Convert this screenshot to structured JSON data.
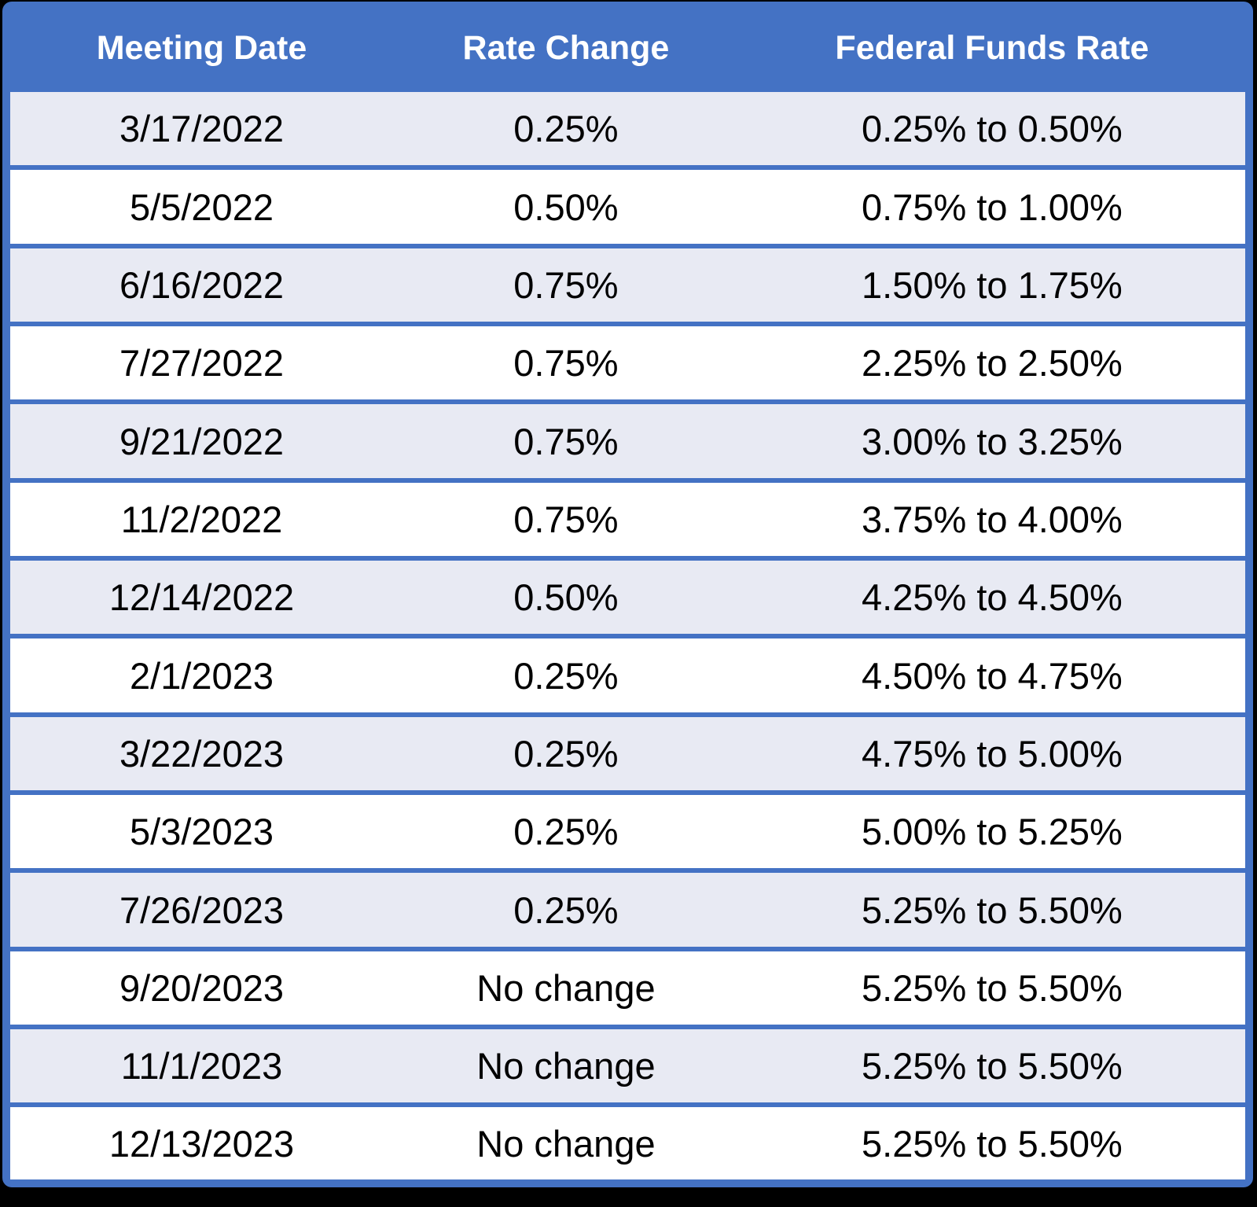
{
  "chart_data": {
    "type": "table",
    "title": "",
    "columns": [
      "Meeting Date",
      "Rate Change",
      "Federal Funds Rate"
    ],
    "rows": [
      [
        "3/17/2022",
        "0.25%",
        "0.25% to 0.50%"
      ],
      [
        "5/5/2022",
        "0.50%",
        "0.75% to 1.00%"
      ],
      [
        "6/16/2022",
        "0.75%",
        "1.50% to 1.75%"
      ],
      [
        "7/27/2022",
        "0.75%",
        "2.25% to 2.50%"
      ],
      [
        "9/21/2022",
        "0.75%",
        "3.00% to 3.25%"
      ],
      [
        "11/2/2022",
        "0.75%",
        "3.75% to 4.00%"
      ],
      [
        "12/14/2022",
        "0.50%",
        "4.25% to 4.50%"
      ],
      [
        "2/1/2023",
        "0.25%",
        "4.50% to 4.75%"
      ],
      [
        "3/22/2023",
        "0.25%",
        "4.75% to 5.00%"
      ],
      [
        "5/3/2023",
        "0.25%",
        "5.00% to 5.25%"
      ],
      [
        "7/26/2023",
        "0.25%",
        "5.25% to 5.50%"
      ],
      [
        "9/20/2023",
        "No change",
        "5.25% to 5.50%"
      ],
      [
        "11/1/2023",
        "No change",
        "5.25% to 5.50%"
      ],
      [
        "12/13/2023",
        "No change",
        "5.25% to 5.50%"
      ]
    ],
    "layout": {
      "column_width_percent": [
        31,
        28,
        41
      ],
      "alternating_rows": true,
      "first_data_row_shaded": true
    }
  },
  "colors": {
    "header_bg": "#4472C4",
    "header_text": "#FFFFFF",
    "row_border": "#4472C4",
    "row_alt_bg": "#E8EAF3",
    "row_bg": "#FFFFFF",
    "cell_text": "#000000",
    "frame_bg": "#000000"
  }
}
